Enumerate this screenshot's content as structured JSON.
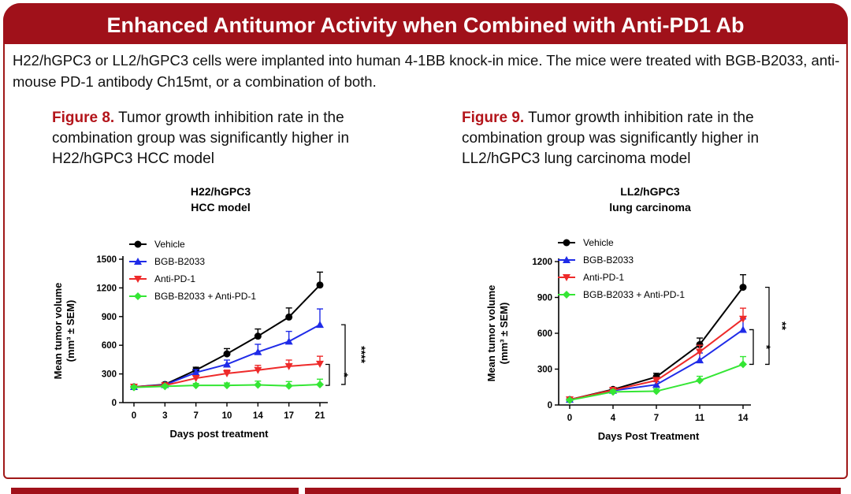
{
  "header": {
    "title": "Enhanced Antitumor Activity when Combined with Anti-PD1 Ab"
  },
  "intro": {
    "text": "H22/hGPC3 or LL2/hGPC3 cells were implanted into human 4-1BB knock-in mice. The mice were treated with BGB-B2033, anti-mouse PD-1 antibody Ch15mt, or a combination of both."
  },
  "figures": [
    {
      "label": "Figure 8.",
      "caption": " Tumor growth inhibition rate  in the combination group was significantly higher in H22/hGPC3 HCC model"
    },
    {
      "label": "Figure 9.",
      "caption": " Tumor growth inhibition rate in the combination group was significantly higher in LL2/hGPC3 lung carcinoma model"
    }
  ],
  "colors": {
    "banner": "#a0111a",
    "figure_label": "#b3141a",
    "vehicle": "#000000",
    "bgb": "#1f2be8",
    "antipd1": "#ee2a2a",
    "combo": "#34e634"
  },
  "chart_data": [
    {
      "type": "line",
      "title": [
        "H22/hGPC3",
        "HCC model"
      ],
      "xlabel": "Days post treatment",
      "ylabel": [
        "Mean tumor volume",
        "(mm³ ± SEM)"
      ],
      "x": [
        0,
        3,
        7,
        10,
        14,
        17,
        21
      ],
      "x_ticks": [
        "0",
        "3",
        "7",
        "10",
        "14",
        "17",
        "21"
      ],
      "x_spacing": "categorical",
      "y_ticks": [
        "0",
        "300",
        "600",
        "900",
        "1200",
        "1500"
      ],
      "ylim": [
        0,
        1500
      ],
      "legend_position": "top-left",
      "series": [
        {
          "name": "Vehicle",
          "marker": "circle",
          "color": "#000000",
          "values": [
            165,
            190,
            340,
            510,
            695,
            895,
            1230
          ],
          "err": [
            25,
            20,
            30,
            55,
            75,
            95,
            135
          ]
        },
        {
          "name": "BGB-B2033",
          "marker": "triangle-up",
          "color": "#1f2be8",
          "values": [
            165,
            185,
            315,
            400,
            530,
            640,
            815
          ],
          "err": [
            20,
            20,
            30,
            45,
            80,
            105,
            165
          ]
        },
        {
          "name": "Anti-PD-1",
          "marker": "triangle-down",
          "color": "#ee2a2a",
          "values": [
            165,
            180,
            255,
            305,
            340,
            380,
            405
          ],
          "err": [
            20,
            20,
            25,
            35,
            50,
            65,
            80
          ]
        },
        {
          "name": "BGB-B2033 + Anti-PD-1",
          "marker": "diamond",
          "color": "#34e634",
          "values": [
            160,
            170,
            180,
            180,
            185,
            175,
            190
          ],
          "err": [
            15,
            15,
            20,
            25,
            40,
            45,
            55
          ]
        }
      ],
      "annotations": [
        {
          "label": "*",
          "between": [
            "Anti-PD-1",
            "BGB-B2033 + Anti-PD-1"
          ]
        },
        {
          "label": "****",
          "between": [
            "BGB-B2033",
            "BGB-B2033 + Anti-PD-1"
          ]
        }
      ]
    },
    {
      "type": "line",
      "title": [
        "LL2/hGPC3",
        "lung carcinoma"
      ],
      "xlabel": "Days Post Treatment",
      "ylabel": [
        "Mean tumor volume",
        "(mm³ ± SEM)"
      ],
      "x": [
        0,
        4,
        7,
        11,
        14
      ],
      "x_ticks": [
        "0",
        "4",
        "7",
        "11",
        "14"
      ],
      "x_spacing": "categorical",
      "y_ticks": [
        "0",
        "300",
        "600",
        "900",
        "1200"
      ],
      "ylim": [
        0,
        1200
      ],
      "legend_position": "top-left",
      "series": [
        {
          "name": "Vehicle",
          "marker": "circle",
          "color": "#000000",
          "values": [
            45,
            130,
            235,
            505,
            985
          ],
          "err": [
            10,
            15,
            30,
            55,
            105
          ]
        },
        {
          "name": "BGB-B2033",
          "marker": "triangle-up",
          "color": "#1f2be8",
          "values": [
            45,
            120,
            170,
            375,
            630
          ],
          "err": [
            10,
            15,
            25,
            60,
            90
          ]
        },
        {
          "name": "Anti-PD-1",
          "marker": "triangle-down",
          "color": "#ee2a2a",
          "values": [
            45,
            125,
            205,
            445,
            720
          ],
          "err": [
            10,
            15,
            25,
            55,
            90
          ]
        },
        {
          "name": "BGB-B2033 + Anti-PD-1",
          "marker": "diamond",
          "color": "#34e634",
          "values": [
            40,
            110,
            115,
            205,
            340
          ],
          "err": [
            10,
            15,
            20,
            35,
            65
          ]
        }
      ],
      "annotations": [
        {
          "label": "*",
          "between": [
            "BGB-B2033",
            "BGB-B2033 + Anti-PD-1"
          ]
        },
        {
          "label": "**",
          "between": [
            "Vehicle",
            "BGB-B2033 + Anti-PD-1"
          ]
        }
      ]
    }
  ]
}
